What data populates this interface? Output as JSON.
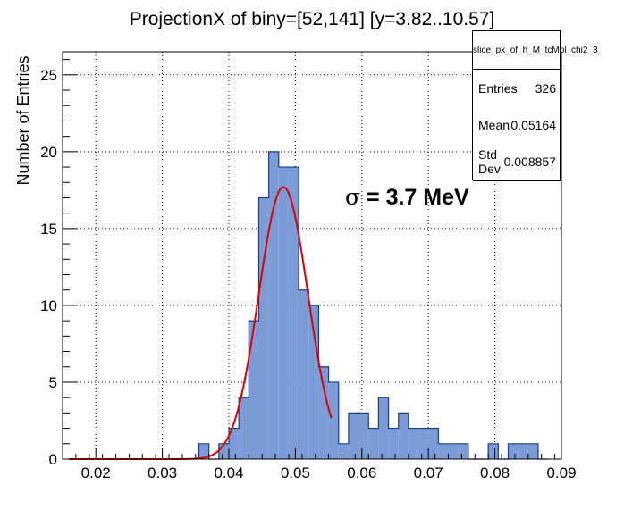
{
  "chart_data": {
    "type": "bar",
    "title": "ProjectionX of biny=[52,141] [y=3.82..10.57]",
    "xlabel": "",
    "ylabel": "Number of Entries",
    "xlim": [
      0.015,
      0.09
    ],
    "ylim": [
      0,
      26.5
    ],
    "bin_width": 0.0015,
    "bin_lows": [
      0.0355,
      0.037,
      0.0385,
      0.04,
      0.0415,
      0.043,
      0.0445,
      0.046,
      0.0475,
      0.049,
      0.0505,
      0.052,
      0.0535,
      0.055,
      0.0565,
      0.058,
      0.0595,
      0.061,
      0.0625,
      0.064,
      0.0655,
      0.067,
      0.0685,
      0.07,
      0.0715,
      0.073,
      0.0745,
      0.076,
      0.0775,
      0.079,
      0.0805,
      0.082,
      0.0835,
      0.085,
      0.0865
    ],
    "values": [
      1,
      0,
      1,
      2,
      4,
      9,
      17,
      20,
      19,
      19,
      11,
      10,
      6,
      5,
      1,
      3,
      3,
      2,
      4,
      2,
      3,
      2,
      2,
      2,
      1,
      1,
      1,
      0,
      0,
      1,
      0,
      1,
      1,
      1,
      0
    ],
    "x_ticks": [
      "0.02",
      "0.03",
      "0.04",
      "0.05",
      "0.06",
      "0.07",
      "0.08",
      "0.09"
    ],
    "y_ticks": [
      "0",
      "5",
      "10",
      "15",
      "20",
      "25"
    ],
    "fit": {
      "mean": 0.0482,
      "sigma": 0.0037,
      "amplitude": 17.7,
      "range": [
        0.016,
        0.0555
      ],
      "color": "#e00000"
    },
    "fill_color": "#7b9cd6",
    "line_color": "#1a3c8c",
    "grid": true,
    "stats": {
      "title": "slice_px_of_h_M_tcMol_chi2_3",
      "rows": [
        {
          "label": "Entries",
          "value": "326"
        },
        {
          "label": "Mean",
          "value": "0.05164"
        },
        {
          "label": "Std Dev",
          "value": "0.008857"
        }
      ]
    },
    "annotation": {
      "symbol": "σ",
      "text": " = 3.7 MeV"
    }
  }
}
